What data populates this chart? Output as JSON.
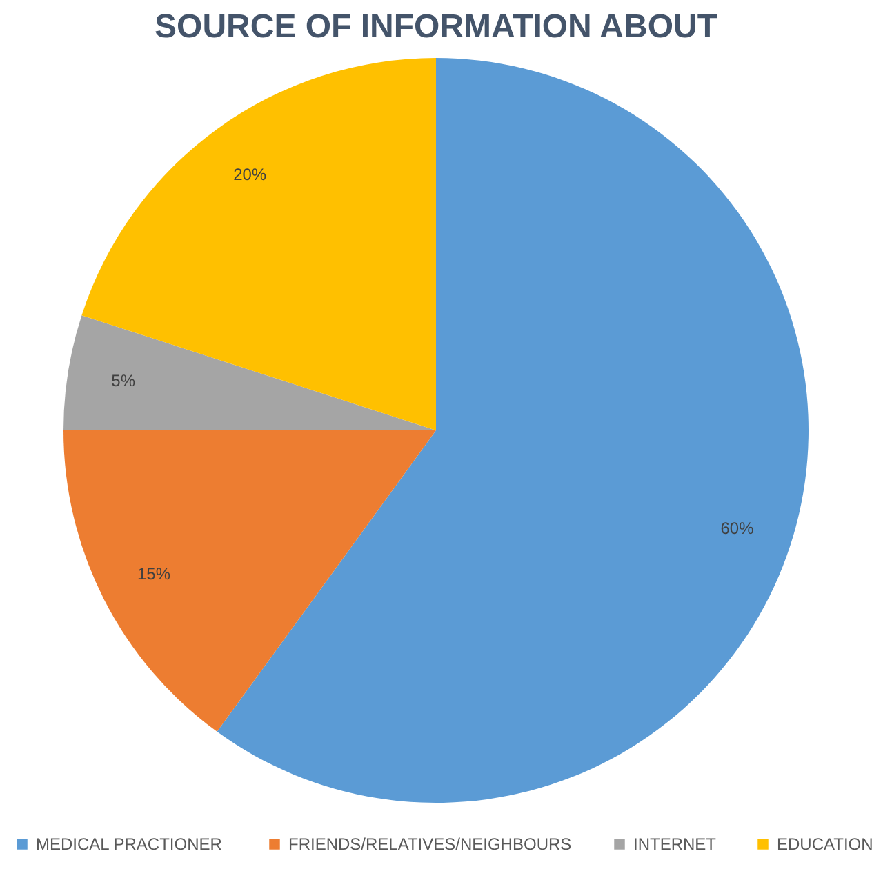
{
  "chart_data": {
    "type": "pie",
    "title": "SOURCE OF INFORMATION ABOUT",
    "categories": [
      "MEDICAL  PRACTIONER",
      "FRIENDS/RELATIVES/NEIGHBOURS",
      "INTERNET",
      "EDUCATION"
    ],
    "values": [
      60,
      15,
      5,
      20
    ],
    "colors": [
      "#5b9bd5",
      "#ed7d31",
      "#a5a5a5",
      "#ffc000"
    ],
    "value_labels": [
      "60%",
      "15%",
      "5%",
      "20%"
    ],
    "legend": "bottom"
  }
}
